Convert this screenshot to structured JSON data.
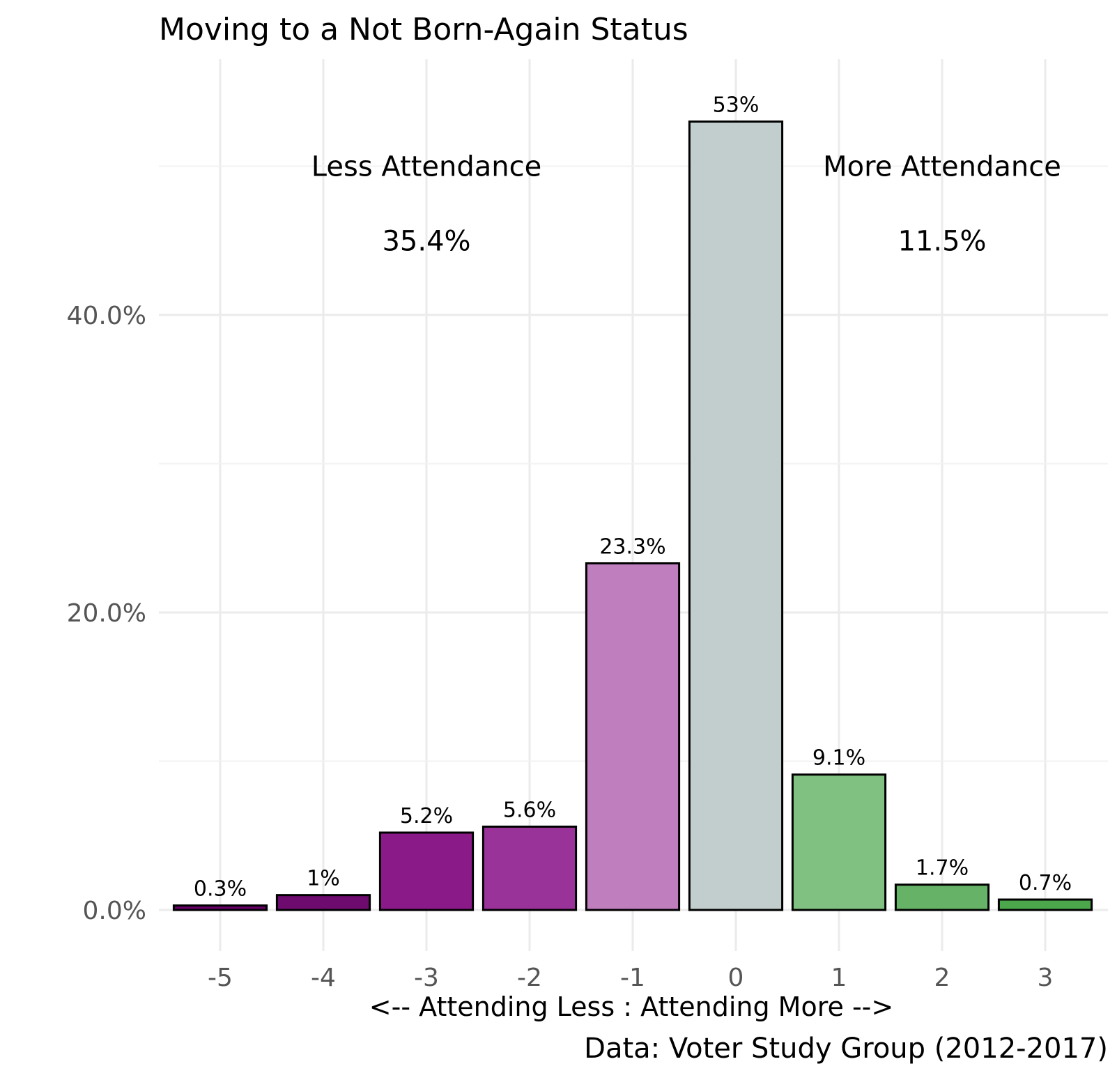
{
  "chart_data": {
    "type": "bar",
    "title": "Moving to a Not Born-Again Status",
    "xlabel": "<-- Attending Less : Attending More -->",
    "ylabel": "",
    "caption": "Data: Voter Study Group (2012-2017)",
    "categories": [
      "-5",
      "-4",
      "-3",
      "-2",
      "-1",
      "0",
      "1",
      "2",
      "3"
    ],
    "values": [
      0.3,
      1.0,
      5.2,
      5.6,
      23.3,
      53.0,
      9.1,
      1.7,
      0.7
    ],
    "value_labels": [
      "0.3%",
      "1%",
      "5.2%",
      "5.6%",
      "23.3%",
      "53%",
      "9.1%",
      "1.7%",
      "0.7%"
    ],
    "colors": [
      "#6a006a",
      "#6e0b6e",
      "#8b1a89",
      "#993399",
      "#bf7fbf",
      "#c1cecd",
      "#80c080",
      "#66b266",
      "#4ca64c"
    ],
    "ylim": [
      -2.5,
      57
    ],
    "yticks": [
      0,
      20,
      40
    ],
    "ytick_labels": [
      "0.0%",
      "20.0%",
      "40.0%"
    ],
    "grid": true,
    "legend": "none",
    "annotations": [
      {
        "text": "Less Attendance",
        "x": -3,
        "y": 50
      },
      {
        "text": "35.4%",
        "x": -3,
        "y": 45
      },
      {
        "text": "More Attendance",
        "x": 2,
        "y": 50
      },
      {
        "text": "11.5%",
        "x": 2,
        "y": 45
      }
    ]
  }
}
